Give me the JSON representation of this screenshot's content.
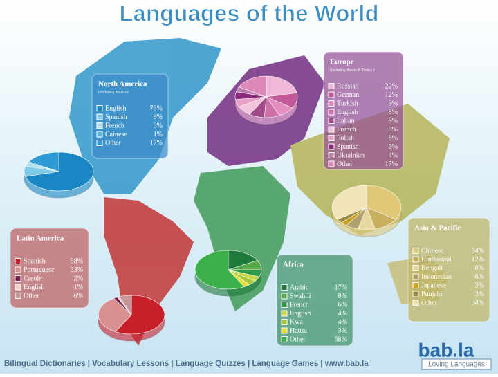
{
  "title": "Languages of the World",
  "footer": "Bilingual Dictionaries | Vocabulary Lessons | Language Quizzes | Language Games | www.bab.la",
  "logo": {
    "name": "bab.la",
    "tagline": "Loving Languages"
  },
  "chart_data": [
    {
      "type": "pie",
      "title": "North America",
      "subtitle": "(excluding Mexico)",
      "categories": [
        "English",
        "Spanish",
        "French",
        "Cainese",
        "Other"
      ],
      "values": [
        73,
        9,
        3,
        1,
        17
      ],
      "value_labels": [
        "73%",
        "9%",
        "3%",
        "1%",
        "17%"
      ],
      "colors": [
        "#1a86c4",
        "#7fcbe8",
        "#b2e0f2",
        "#5ab5dc",
        "#2f9bd4"
      ]
    },
    {
      "type": "pie",
      "title": "Europe",
      "subtitle": "(including Russia & Turkey )",
      "categories": [
        "Russian",
        "German",
        "Turkish",
        "English",
        "Italian",
        "French",
        "Polish",
        "Spanish",
        "Ukrainian",
        "Other"
      ],
      "values": [
        22,
        12,
        9,
        8,
        8,
        8,
        6,
        6,
        4,
        17
      ],
      "value_labels": [
        "22%",
        "12%",
        "9%",
        "8%",
        "8%",
        "8%",
        "6%",
        "6%",
        "4%",
        "17%"
      ],
      "colors": [
        "#f0b8d8",
        "#c25a9a",
        "#e58fbf",
        "#d070a8",
        "#a04a8a",
        "#f4c4dc",
        "#e8a0c8",
        "#8a2a7a",
        "#c080b0",
        "#dc88b8"
      ]
    },
    {
      "type": "pie",
      "title": "Latin America",
      "categories": [
        "Spanish",
        "Portuguese",
        "Creole",
        "English",
        "Other"
      ],
      "values": [
        58,
        33,
        2,
        1,
        6
      ],
      "value_labels": [
        "58%",
        "33%",
        "2%",
        "1%",
        "6%"
      ],
      "colors": [
        "#c8202a",
        "#d89090",
        "#7a2050",
        "#f2c8c8",
        "#c89898"
      ]
    },
    {
      "type": "pie",
      "title": "Africa",
      "categories": [
        "Arabic",
        "Swahili",
        "French",
        "English",
        "Kwa",
        "Hausa",
        "Other"
      ],
      "values": [
        17,
        8,
        6,
        4,
        4,
        3,
        58
      ],
      "value_labels": [
        "17%",
        "8%",
        "6%",
        "4%",
        "4%",
        "3%",
        "58%"
      ],
      "colors": [
        "#1e7a3a",
        "#5aa84a",
        "#2f9a4a",
        "#c8d840",
        "#a8c838",
        "#e8e030",
        "#3cb04a"
      ]
    },
    {
      "type": "pie",
      "title": "Asia & Pacific",
      "categories": [
        "Chinese",
        "Hindustani",
        "Bengali",
        "Indonesian",
        "Japanese",
        "Punjabi",
        "Other"
      ],
      "values": [
        34,
        12,
        8,
        6,
        3,
        3,
        34
      ],
      "value_labels": [
        "34%",
        "12%",
        "8%",
        "6%",
        "3%",
        "3%",
        "34%"
      ],
      "colors": [
        "#e0c878",
        "#c8b060",
        "#e8d8a0",
        "#b0a070",
        "#c8a020",
        "#9a8a40",
        "#f0e4b8"
      ]
    }
  ]
}
